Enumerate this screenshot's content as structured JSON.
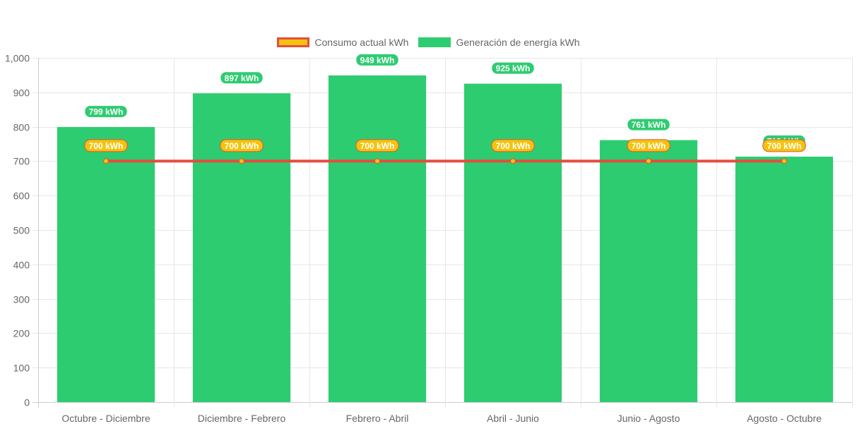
{
  "colors": {
    "bar": "#2ecc71",
    "line": "#e74c3c",
    "point": "#f2c40f",
    "grid": "#e6e6e6",
    "tick": "#666666"
  },
  "chart_data": {
    "type": "bar",
    "categories": [
      "Octubre - Diciembre",
      "Diciembre - Febrero",
      "Febrero - Abril",
      "Abril - Junio",
      "Junio - Agosto",
      "Agosto - Octubre"
    ],
    "series": [
      {
        "name": "Consumo actual kWh",
        "type": "line",
        "values": [
          700,
          700,
          700,
          700,
          700,
          700
        ],
        "data_labels": [
          "700 kWh",
          "700 kWh",
          "700 kWh",
          "700 kWh",
          "700 kWh",
          "700 kWh"
        ]
      },
      {
        "name": "Generación de energía kWh",
        "type": "bar",
        "values": [
          799,
          897,
          949,
          925,
          761,
          713
        ],
        "data_labels": [
          "799 kWh",
          "897 kWh",
          "949 kWh",
          "925 kWh",
          "761 kWh",
          "713 kWh"
        ]
      }
    ],
    "ylim": [
      0,
      1000
    ],
    "yticks": [
      0,
      100,
      200,
      300,
      400,
      500,
      600,
      700,
      800,
      900,
      1000
    ],
    "ytick_labels": [
      "0",
      "100",
      "200",
      "300",
      "400",
      "500",
      "600",
      "700",
      "800",
      "900",
      "1,000"
    ],
    "grid": true,
    "legend_position": "top-center"
  }
}
